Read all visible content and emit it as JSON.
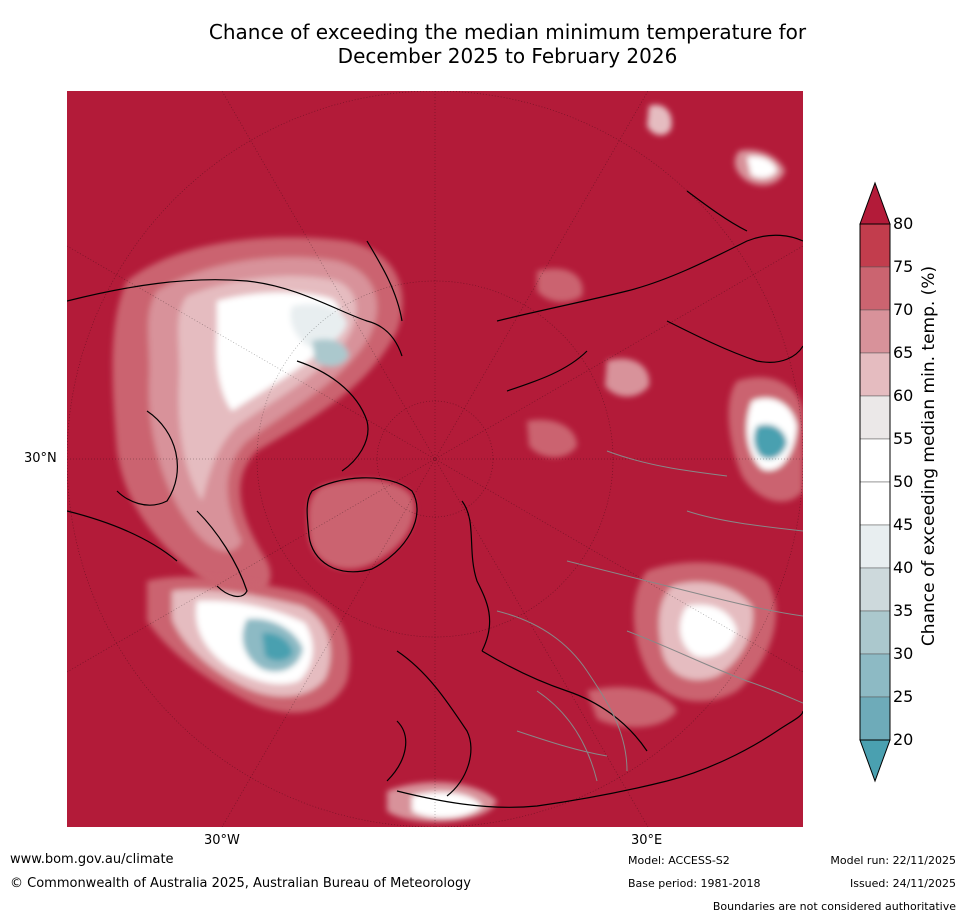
{
  "title": {
    "line1": "Chance of exceeding the median minimum temperature for",
    "line2": "December 2025 to February 2026"
  },
  "map": {
    "projection": "north polar stereographic",
    "region": "Northern Hemisphere",
    "tick_labels": {
      "left_lat": "30°N",
      "bottom_left_lon": "30°W",
      "bottom_right_lon": "30°E"
    },
    "colors": {
      "above_80": "#b31b39",
      "75_80": "#c23d4d",
      "70_75": "#cb6470",
      "65_70": "#d8929a",
      "60_65": "#e5bcc0",
      "55_60": "#ebe8e8",
      "45_55": "#ffffff",
      "40_45": "#e8eef0",
      "35_40": "#cdd9dc",
      "30_35": "#abc8cd",
      "25_30": "#8dbac4",
      "20_25": "#6eabb9",
      "below_20": "#4aa0b0"
    }
  },
  "colorbar": {
    "label": "Chance of exceeding median min. temp. (%)",
    "ticks": [
      "80",
      "75",
      "70",
      "65",
      "60",
      "55",
      "50",
      "45",
      "40",
      "35",
      "30",
      "25",
      "20"
    ],
    "top_arrow_color": "#b31b39",
    "bottom_arrow_color": "#4aa0b0",
    "segments": [
      {
        "range": "75-80",
        "color": "#c23d4d"
      },
      {
        "range": "70-75",
        "color": "#cb6470"
      },
      {
        "range": "65-70",
        "color": "#d8929a"
      },
      {
        "range": "60-65",
        "color": "#e5bcc0"
      },
      {
        "range": "55-60",
        "color": "#ebe8e8"
      },
      {
        "range": "50-55",
        "color": "#ffffff"
      },
      {
        "range": "45-50",
        "color": "#ffffff"
      },
      {
        "range": "40-45",
        "color": "#e8eef0"
      },
      {
        "range": "35-40",
        "color": "#cdd9dc"
      },
      {
        "range": "30-35",
        "color": "#abc8cd"
      },
      {
        "range": "25-30",
        "color": "#8dbac4"
      },
      {
        "range": "20-25",
        "color": "#6eabb9"
      }
    ]
  },
  "footer": {
    "website": "www.bom.gov.au/climate",
    "copyright": "© Commonwealth of Australia 2025, Australian Bureau of Meteorology",
    "model": "Model: ACCESS-S2",
    "base_period": "Base period: 1981-2018",
    "model_run": "Model run: 22/11/2025",
    "issued": "Issued: 24/11/2025",
    "disclaimer": "Boundaries are not considered authoritative"
  }
}
